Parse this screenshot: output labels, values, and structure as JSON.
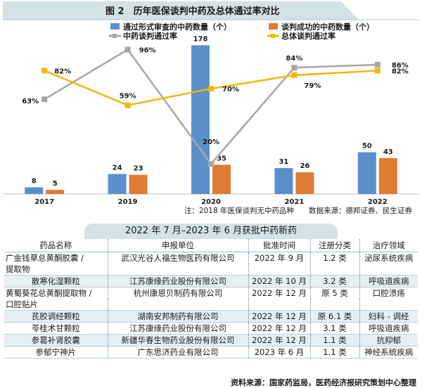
{
  "chart_title": "图 2　历年医保谈判中药及总体通过率对比",
  "chart_data": {
    "type": "bar",
    "categories": [
      "2017",
      "2019",
      "2020",
      "2021",
      "2022"
    ],
    "series": [
      {
        "name": "通过形式审查的中药数量（个）",
        "kind": "bar",
        "color": "#5b8fcc",
        "values": [
          8,
          24,
          178,
          31,
          50
        ]
      },
      {
        "name": "谈判成功的中药数量（个）",
        "kind": "bar",
        "color": "#e07b33",
        "values": [
          5,
          23,
          35,
          26,
          43
        ]
      },
      {
        "name": "中药谈判通过率",
        "kind": "line",
        "color": "#a6a6a6",
        "values": [
          63,
          96,
          20,
          84,
          86
        ],
        "labels": [
          "63%",
          "96%",
          "20%",
          "84%",
          "86%"
        ]
      },
      {
        "name": "总体谈判通过率",
        "kind": "line",
        "color": "#f2b705",
        "values": [
          82,
          59,
          70,
          79,
          82
        ],
        "labels": [
          "82%",
          "59%",
          "70%",
          "79%",
          "82%"
        ]
      }
    ],
    "bar_ylim": [
      0,
      180
    ],
    "rate_ylim": [
      0,
      100
    ]
  },
  "chart_note": "注：2018 年医保谈判无中药品种　　数据来源：德邦证券、民生证券",
  "table_title": "2022 年 7 月–2023 年 6 月获批中药新药",
  "table_headers": [
    "药品名称",
    "申报单位",
    "批准时间",
    "注册分类",
    "治疗领域"
  ],
  "table_rows": [
    {
      "lines": [
        [
          "广金钱草总黄酮胶囊 /",
          "武汉光谷人福生物医药有限公司",
          "2022 年 9 月",
          "1.2 类",
          "泌尿系统疾病"
        ],
        [
          "提取物",
          "",
          "",
          "",
          ""
        ]
      ]
    },
    {
      "lines": [
        [
          "散寒化湿颗粒",
          "江苏康缘药业股份有限公司",
          "2022 年 10 月",
          "3.2 类",
          "呼吸道疾病"
        ]
      ]
    },
    {
      "lines": [
        [
          "黄蜀葵花总黄酮提取物 /",
          "杭州康恩贝制药有限公司",
          "2022 年 12 月",
          "原 5 类",
          "口腔溃疡"
        ],
        [
          "口腔贴片",
          "",
          "",
          "",
          ""
        ]
      ]
    },
    {
      "lines": [
        [
          "芪胶调经颗粒",
          "湖南安邦制药有限公司",
          "2022 年 12 月",
          "原 6.1 类",
          "妇科 - 调经"
        ]
      ]
    },
    {
      "lines": [
        [
          "苓桂术甘颗粒",
          "江苏康缘药业股份有限公司",
          "2022 年 12 月",
          "3.1 类",
          "呼吸道疾病"
        ]
      ]
    },
    {
      "lines": [
        [
          "参葛补肾胶囊",
          "新疆华春生物药业股份有限公司",
          "2022 年 12 月",
          "1.1 类",
          "抗抑郁"
        ]
      ]
    },
    {
      "lines": [
        [
          "参郁宁神片",
          "广东思济药业有限公司",
          "2023 年 6 月",
          "1.1 类",
          "神经系统疾病"
        ]
      ]
    }
  ],
  "table_source": "资料来源：国家药监局，医药经济报研究策划中心整理",
  "colors": {
    "header_bg": "#d2e2e6",
    "row_alt": "#e6f0f3",
    "bar_blue": "#5b8fcc",
    "bar_orange": "#e07b33",
    "line_grey": "#a6a6a6",
    "line_yellow": "#f2b705"
  }
}
